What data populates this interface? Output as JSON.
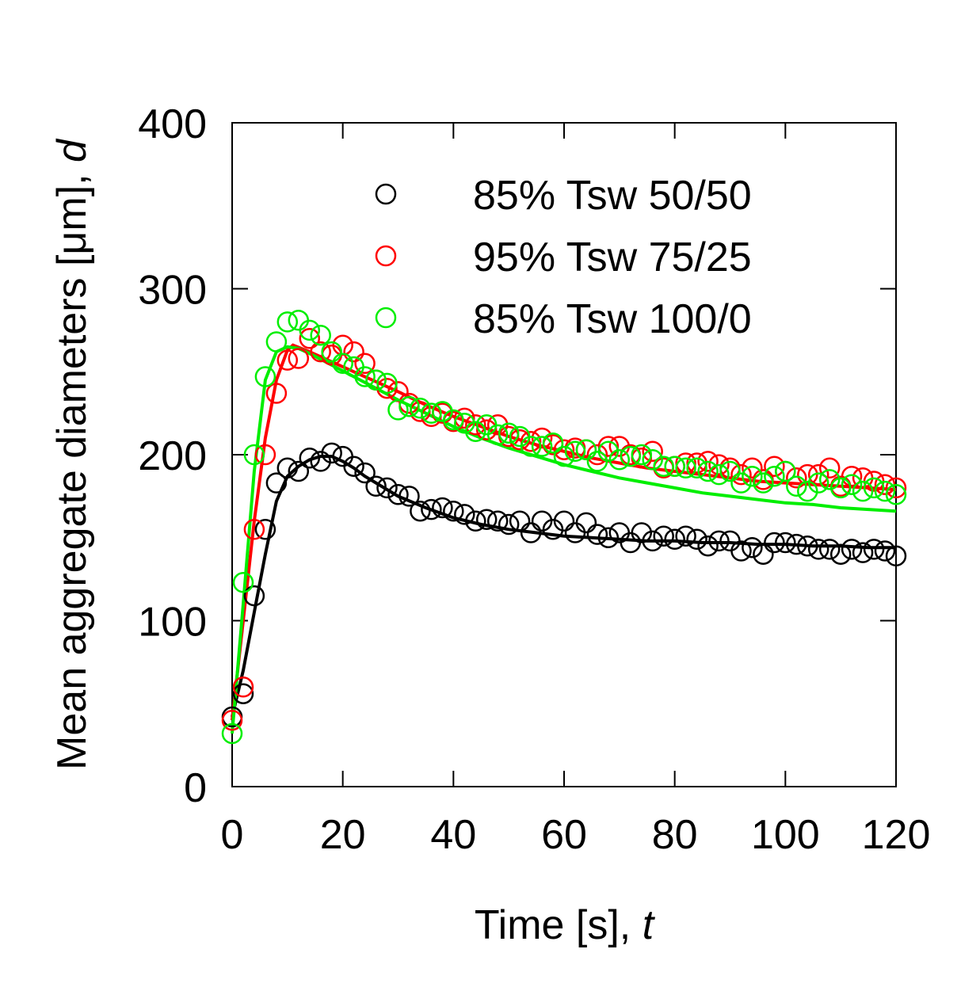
{
  "chart_data": {
    "type": "scatter",
    "xlabel": "Time [s], ",
    "xlabel_var": "t",
    "ylabel": "Mean aggregate diameters [μm], ",
    "ylabel_var": "d",
    "xlim": [
      0,
      120
    ],
    "ylim": [
      0,
      400
    ],
    "xticks": [
      0,
      20,
      40,
      60,
      80,
      100,
      120
    ],
    "yticks": [
      0,
      100,
      200,
      300,
      400
    ],
    "grid": false,
    "legend_position": "top-right",
    "series": [
      {
        "name": "85% Tsw 50/50",
        "color": "#000000",
        "x": [
          0,
          2,
          4,
          6,
          8,
          10,
          12,
          14,
          16,
          18,
          20,
          22,
          24,
          26,
          28,
          30,
          32,
          34,
          36,
          38,
          40,
          42,
          44,
          46,
          48,
          50,
          52,
          54,
          56,
          58,
          60,
          62,
          64,
          66,
          68,
          70,
          72,
          74,
          76,
          78,
          80,
          82,
          84,
          86,
          88,
          90,
          92,
          94,
          96,
          98,
          100,
          102,
          104,
          106,
          108,
          110,
          112,
          114,
          116,
          118,
          120
        ],
        "y": [
          42,
          56,
          115,
          155,
          183,
          192,
          190,
          198,
          196,
          201,
          199,
          193,
          189,
          181,
          180,
          176,
          175,
          166,
          167,
          168,
          166,
          164,
          160,
          161,
          160,
          158,
          160,
          153,
          160,
          155,
          160,
          153,
          159,
          152,
          150,
          153,
          147,
          153,
          148,
          151,
          149,
          151,
          149,
          145,
          148,
          148,
          142,
          144,
          140,
          147,
          147,
          146,
          145,
          143,
          143,
          140,
          143,
          141,
          143,
          142,
          139
        ],
        "fit_x": [
          0,
          2,
          4,
          6,
          8,
          10,
          12,
          14,
          16,
          18,
          20,
          22,
          24,
          26,
          28,
          30,
          35,
          40,
          45,
          50,
          55,
          60,
          65,
          70,
          75,
          80,
          85,
          90,
          95,
          100,
          105,
          110,
          115,
          120
        ],
        "fit_y": [
          42,
          70,
          105,
          140,
          172,
          187,
          193,
          197,
          199,
          199,
          196,
          192,
          187,
          183,
          179,
          175,
          168,
          162,
          158,
          155,
          153,
          151,
          150,
          149,
          148,
          148,
          147,
          147,
          146,
          146,
          145,
          145,
          144,
          144
        ]
      },
      {
        "name": "95% Tsw 75/25",
        "color": "#ff0000",
        "x": [
          0,
          2,
          4,
          6,
          8,
          10,
          12,
          14,
          16,
          18,
          20,
          22,
          24,
          26,
          28,
          30,
          32,
          34,
          36,
          38,
          40,
          42,
          44,
          46,
          48,
          50,
          52,
          54,
          56,
          58,
          60,
          62,
          64,
          66,
          68,
          70,
          72,
          74,
          76,
          78,
          80,
          82,
          84,
          86,
          88,
          90,
          92,
          94,
          96,
          98,
          100,
          102,
          104,
          106,
          108,
          110,
          112,
          114,
          116,
          118,
          120
        ],
        "y": [
          40,
          60,
          155,
          200,
          237,
          257,
          258,
          270,
          262,
          260,
          266,
          262,
          255,
          245,
          240,
          238,
          231,
          226,
          223,
          225,
          220,
          222,
          218,
          215,
          218,
          211,
          209,
          208,
          210,
          206,
          203,
          204,
          203,
          200,
          205,
          205,
          200,
          198,
          202,
          192,
          193,
          195,
          195,
          196,
          194,
          192,
          188,
          192,
          185,
          193,
          190,
          186,
          188,
          188,
          192,
          181,
          187,
          186,
          184,
          182,
          180
        ],
        "fit_x": [
          0,
          2,
          4,
          6,
          8,
          10,
          11,
          14,
          18,
          22,
          26,
          30,
          35,
          40,
          45,
          50,
          55,
          60,
          65,
          70,
          75,
          80,
          85,
          90,
          95,
          100,
          105,
          110,
          115,
          120
        ],
        "fit_y": [
          40,
          100,
          160,
          210,
          245,
          263,
          266,
          262,
          256,
          250,
          244,
          238,
          230,
          223,
          217,
          211,
          206,
          202,
          198,
          195,
          192,
          190,
          188,
          186,
          184,
          183,
          182,
          181,
          180,
          179
        ]
      },
      {
        "name": "85% Tsw 100/0",
        "color": "#00ee00",
        "x": [
          0,
          2,
          4,
          6,
          8,
          10,
          12,
          14,
          16,
          18,
          20,
          22,
          24,
          26,
          28,
          30,
          32,
          34,
          36,
          38,
          40,
          42,
          44,
          46,
          48,
          50,
          52,
          54,
          56,
          58,
          60,
          62,
          64,
          66,
          68,
          70,
          72,
          74,
          76,
          78,
          80,
          82,
          84,
          86,
          88,
          90,
          92,
          94,
          96,
          98,
          100,
          102,
          104,
          106,
          108,
          110,
          112,
          114,
          116,
          118,
          120
        ],
        "y": [
          32,
          123,
          200,
          247,
          268,
          280,
          281,
          275,
          272,
          262,
          255,
          253,
          247,
          245,
          243,
          227,
          229,
          228,
          225,
          226,
          221,
          219,
          214,
          218,
          212,
          213,
          211,
          205,
          205,
          207,
          199,
          202,
          203,
          196,
          202,
          197,
          199,
          200,
          197,
          193,
          193,
          192,
          192,
          190,
          188,
          190,
          183,
          187,
          183,
          187,
          190,
          181,
          178,
          183,
          185,
          180,
          182,
          178,
          180,
          178,
          176
        ],
        "fit_x": [
          0,
          2,
          4,
          6,
          8,
          10,
          12,
          14,
          18,
          22,
          26,
          30,
          35,
          40,
          45,
          50,
          55,
          60,
          65,
          70,
          75,
          80,
          85,
          90,
          95,
          100,
          105,
          110,
          115,
          120
        ],
        "fit_y": [
          32,
          110,
          190,
          245,
          262,
          265,
          264,
          261,
          254,
          247,
          240,
          233,
          225,
          217,
          210,
          204,
          199,
          194,
          190,
          186,
          183,
          180,
          177,
          175,
          173,
          171,
          170,
          168,
          167,
          166
        ]
      }
    ]
  }
}
